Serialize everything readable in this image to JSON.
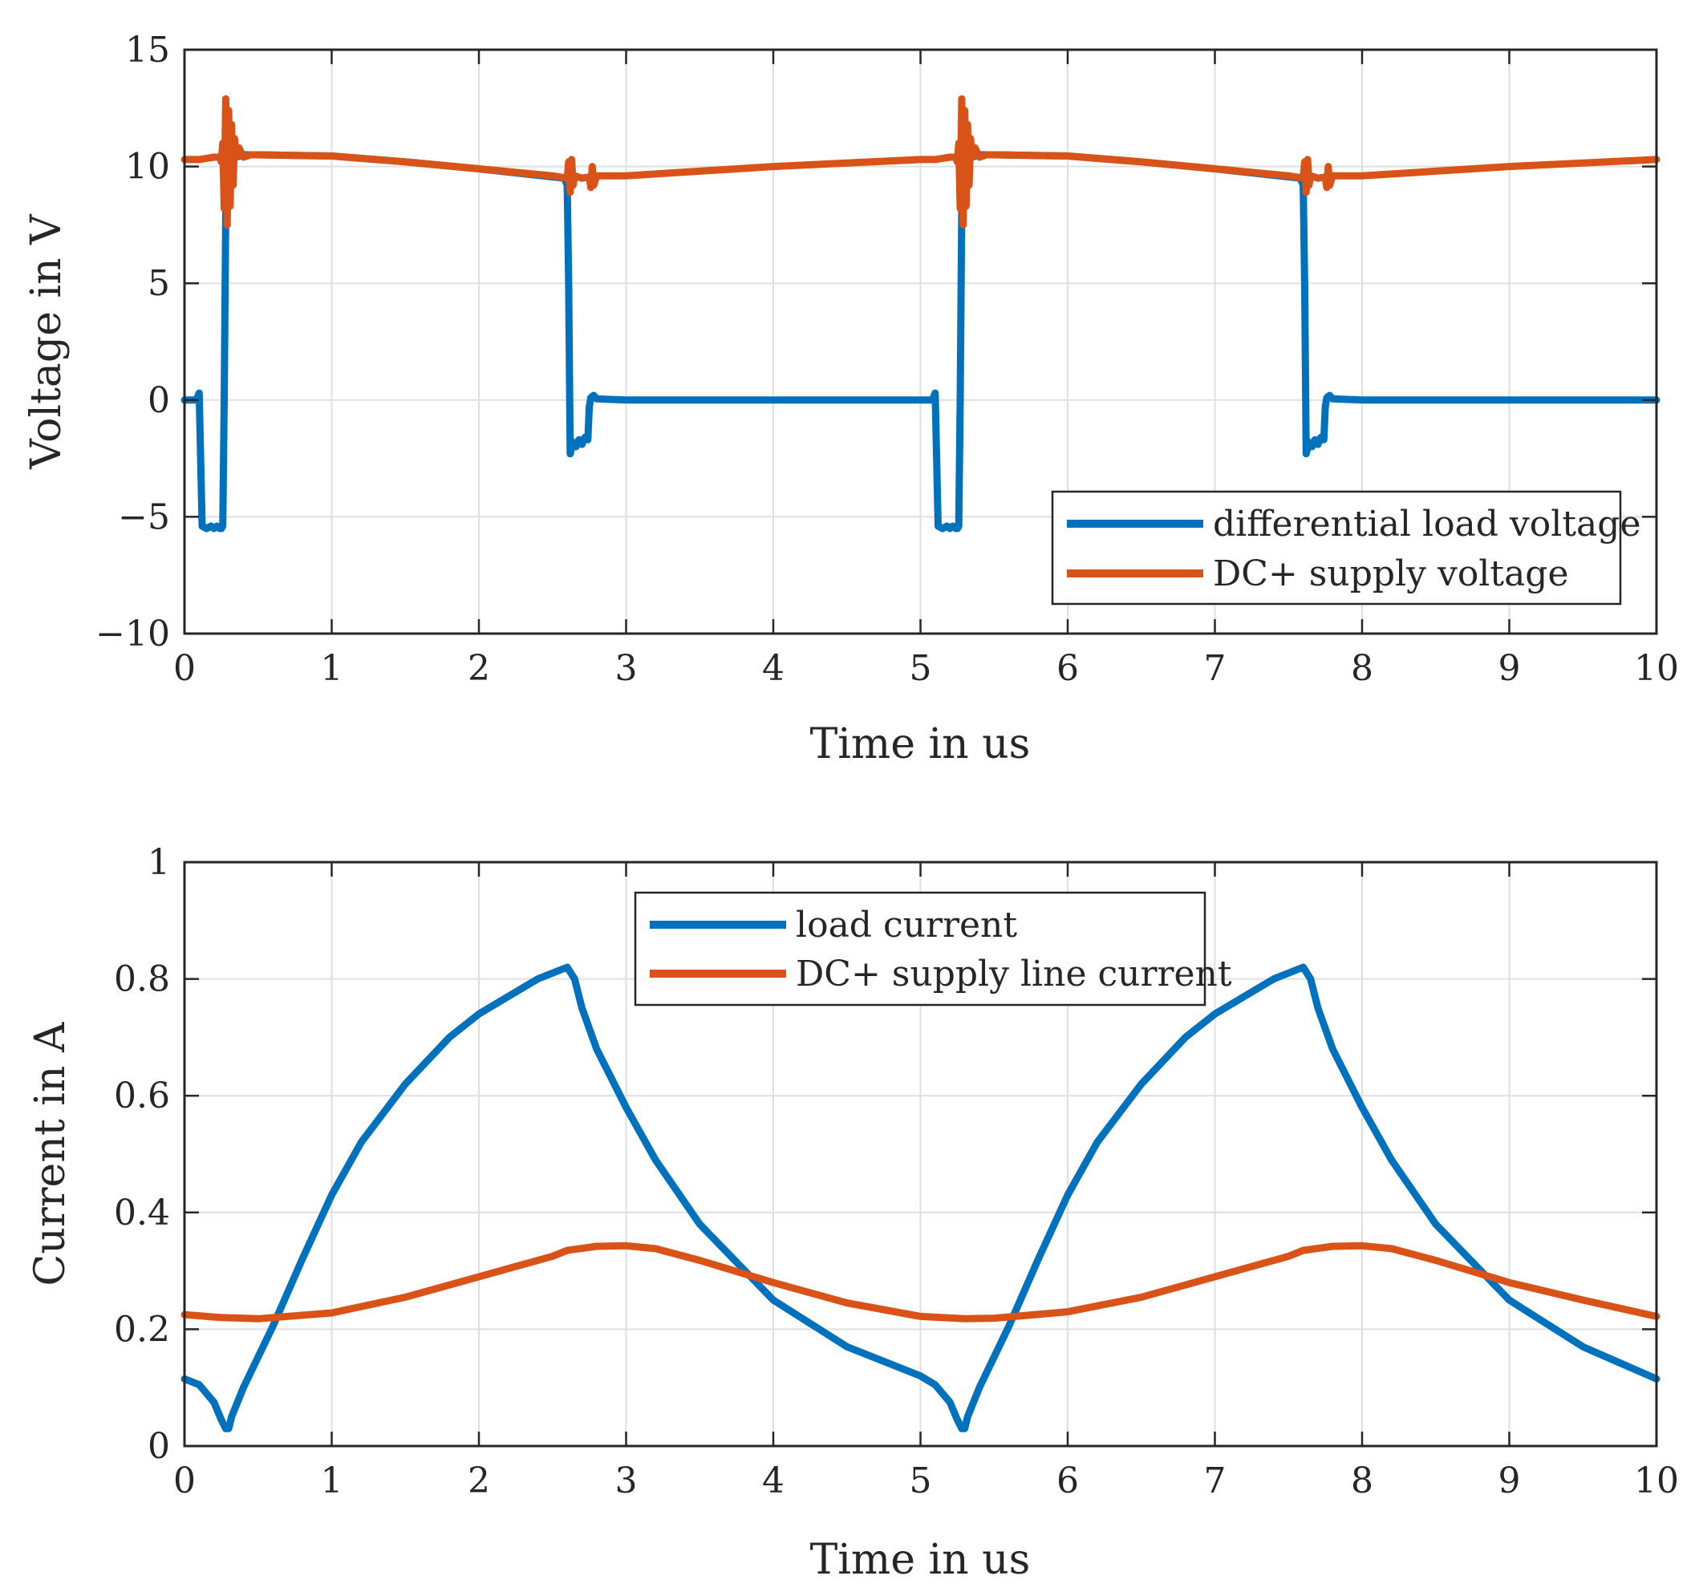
{
  "chart_data": [
    {
      "type": "line",
      "xlabel": "Time in us",
      "ylabel": "Voltage in V",
      "xlim": [
        0,
        10
      ],
      "ylim": [
        -10,
        15
      ],
      "xticks": [
        0,
        1,
        2,
        3,
        4,
        5,
        6,
        7,
        8,
        9,
        10
      ],
      "yticks": [
        -10,
        -5,
        0,
        5,
        10,
        15
      ],
      "xtick_labels": [
        "0",
        "1",
        "2",
        "3",
        "4",
        "5",
        "6",
        "7",
        "8",
        "9",
        "10"
      ],
      "ytick_labels": [
        "−10",
        "−5",
        "0",
        "5",
        "10",
        "15"
      ],
      "grid": true,
      "legend_position": "bottom-right",
      "series": [
        {
          "name": "differential load voltage",
          "color": "#0072BD",
          "x": [
            0,
            0.08,
            0.1,
            0.12,
            0.15,
            0.18,
            0.2,
            0.22,
            0.24,
            0.25,
            0.26,
            0.27,
            0.28,
            0.29,
            0.3,
            0.32,
            0.35,
            0.4,
            0.45,
            0.5,
            1,
            1.5,
            2,
            2.58,
            2.6,
            2.61,
            2.62,
            2.64,
            2.66,
            2.68,
            2.7,
            2.72,
            2.74,
            2.75,
            2.76,
            2.78,
            2.8,
            3,
            4,
            5,
            5.08,
            5.1,
            5.12,
            5.15,
            5.18,
            5.2,
            5.22,
            5.24,
            5.25,
            5.26,
            5.27,
            5.28,
            5.29,
            5.3,
            5.32,
            5.35,
            5.4,
            5.45,
            5.5,
            6,
            6.5,
            7,
            7.58,
            7.6,
            7.61,
            7.62,
            7.64,
            7.66,
            7.68,
            7.7,
            7.72,
            7.74,
            7.75,
            7.76,
            7.78,
            7.8,
            8,
            9,
            10
          ],
          "y": [
            0,
            0,
            0.3,
            -5.4,
            -5.5,
            -5.4,
            -5.5,
            -5.4,
            -5.5,
            -5.5,
            -5.4,
            0,
            8,
            9.5,
            10,
            10.2,
            10.4,
            10.5,
            10.5,
            10.5,
            10.45,
            10.2,
            9.9,
            9.5,
            9.2,
            5,
            -2.3,
            -1.8,
            -2,
            -1.7,
            -1.9,
            -1.6,
            -1.7,
            -0.3,
            0.1,
            0.2,
            0.05,
            0,
            0,
            0,
            0,
            0.3,
            -5.4,
            -5.5,
            -5.4,
            -5.5,
            -5.4,
            -5.5,
            -5.5,
            -5.4,
            0,
            8,
            9.5,
            10,
            10.2,
            10.4,
            10.5,
            10.5,
            10.5,
            10.45,
            10.2,
            9.9,
            9.5,
            9.2,
            5,
            -2.3,
            -1.8,
            -2,
            -1.7,
            -1.9,
            -1.6,
            -1.7,
            -0.3,
            0.1,
            0.2,
            0.05,
            0,
            0,
            0
          ]
        },
        {
          "name": "DC+ supply voltage",
          "color": "#D95319",
          "x": [
            0,
            0.1,
            0.2,
            0.24,
            0.25,
            0.26,
            0.27,
            0.28,
            0.29,
            0.3,
            0.31,
            0.32,
            0.33,
            0.34,
            0.35,
            0.37,
            0.4,
            0.45,
            0.5,
            1,
            1.5,
            2,
            2.5,
            2.6,
            2.61,
            2.62,
            2.63,
            2.64,
            2.65,
            2.7,
            2.75,
            2.76,
            2.77,
            2.78,
            2.8,
            3,
            4,
            5,
            5.1,
            5.2,
            5.24,
            5.25,
            5.26,
            5.27,
            5.28,
            5.29,
            5.3,
            5.31,
            5.32,
            5.33,
            5.34,
            5.35,
            5.37,
            5.4,
            5.45,
            5.5,
            6,
            6.5,
            7,
            7.5,
            7.6,
            7.61,
            7.62,
            7.63,
            7.64,
            7.65,
            7.7,
            7.75,
            7.76,
            7.77,
            7.78,
            7.8,
            8,
            9,
            10
          ],
          "y": [
            10.3,
            10.3,
            10.4,
            10.4,
            10.2,
            11,
            8.2,
            12.9,
            7.5,
            12.4,
            8.3,
            11.8,
            9.2,
            11.2,
            10.4,
            10.8,
            10.4,
            10.5,
            10.5,
            10.45,
            10.2,
            9.9,
            9.6,
            9.5,
            10.2,
            8.9,
            10.3,
            9.2,
            9.6,
            9.5,
            9.55,
            9.1,
            10,
            9.2,
            9.6,
            9.6,
            10,
            10.3,
            10.3,
            10.4,
            10.4,
            10.2,
            11,
            8.2,
            12.9,
            7.5,
            12.4,
            8.3,
            11.8,
            9.2,
            11.2,
            10.4,
            10.8,
            10.4,
            10.5,
            10.5,
            10.45,
            10.2,
            9.9,
            9.6,
            9.5,
            10.2,
            8.9,
            10.3,
            9.2,
            9.6,
            9.5,
            9.55,
            9.1,
            10,
            9.2,
            9.6,
            9.6,
            10,
            10.3
          ]
        }
      ]
    },
    {
      "type": "line",
      "xlabel": "Time in us",
      "ylabel": "Current in A",
      "xlim": [
        0,
        10
      ],
      "ylim": [
        0,
        1
      ],
      "xticks": [
        0,
        1,
        2,
        3,
        4,
        5,
        6,
        7,
        8,
        9,
        10
      ],
      "yticks": [
        0,
        0.2,
        0.4,
        0.6,
        0.8,
        1
      ],
      "xtick_labels": [
        "0",
        "1",
        "2",
        "3",
        "4",
        "5",
        "6",
        "7",
        "8",
        "9",
        "10"
      ],
      "ytick_labels": [
        "0",
        "0.2",
        "0.4",
        "0.6",
        "0.8",
        "1"
      ],
      "grid": true,
      "legend_position": "top-center",
      "series": [
        {
          "name": "load current",
          "color": "#0072BD",
          "x": [
            0,
            0.1,
            0.2,
            0.25,
            0.28,
            0.3,
            0.32,
            0.4,
            0.6,
            0.8,
            1,
            1.2,
            1.5,
            1.8,
            2,
            2.2,
            2.4,
            2.6,
            2.65,
            2.7,
            2.8,
            3,
            3.2,
            3.5,
            4,
            4.5,
            5,
            5.1,
            5.2,
            5.25,
            5.28,
            5.3,
            5.32,
            5.4,
            5.6,
            5.8,
            6,
            6.2,
            6.5,
            6.8,
            7,
            7.2,
            7.4,
            7.6,
            7.65,
            7.7,
            7.8,
            8,
            8.2,
            8.5,
            9,
            9.5,
            10
          ],
          "y": [
            0.115,
            0.105,
            0.075,
            0.045,
            0.03,
            0.03,
            0.05,
            0.1,
            0.205,
            0.32,
            0.43,
            0.52,
            0.62,
            0.7,
            0.74,
            0.77,
            0.8,
            0.82,
            0.8,
            0.75,
            0.68,
            0.58,
            0.49,
            0.38,
            0.25,
            0.17,
            0.12,
            0.105,
            0.075,
            0.045,
            0.03,
            0.03,
            0.05,
            0.1,
            0.205,
            0.32,
            0.43,
            0.52,
            0.62,
            0.7,
            0.74,
            0.77,
            0.8,
            0.82,
            0.8,
            0.75,
            0.68,
            0.58,
            0.49,
            0.38,
            0.25,
            0.17,
            0.115
          ]
        },
        {
          "name": "DC+ supply line current",
          "color": "#D95319",
          "x": [
            0,
            0.25,
            0.5,
            1,
            1.5,
            2,
            2.5,
            2.6,
            2.8,
            3,
            3.2,
            3.5,
            4,
            4.5,
            5,
            5.3,
            5.5,
            6,
            6.5,
            7,
            7.5,
            7.6,
            7.8,
            8,
            8.2,
            8.5,
            9,
            9.5,
            10
          ],
          "y": [
            0.225,
            0.22,
            0.218,
            0.228,
            0.255,
            0.29,
            0.325,
            0.335,
            0.342,
            0.343,
            0.338,
            0.318,
            0.28,
            0.245,
            0.222,
            0.218,
            0.219,
            0.23,
            0.255,
            0.29,
            0.325,
            0.335,
            0.342,
            0.343,
            0.338,
            0.318,
            0.28,
            0.25,
            0.222
          ]
        }
      ]
    }
  ]
}
